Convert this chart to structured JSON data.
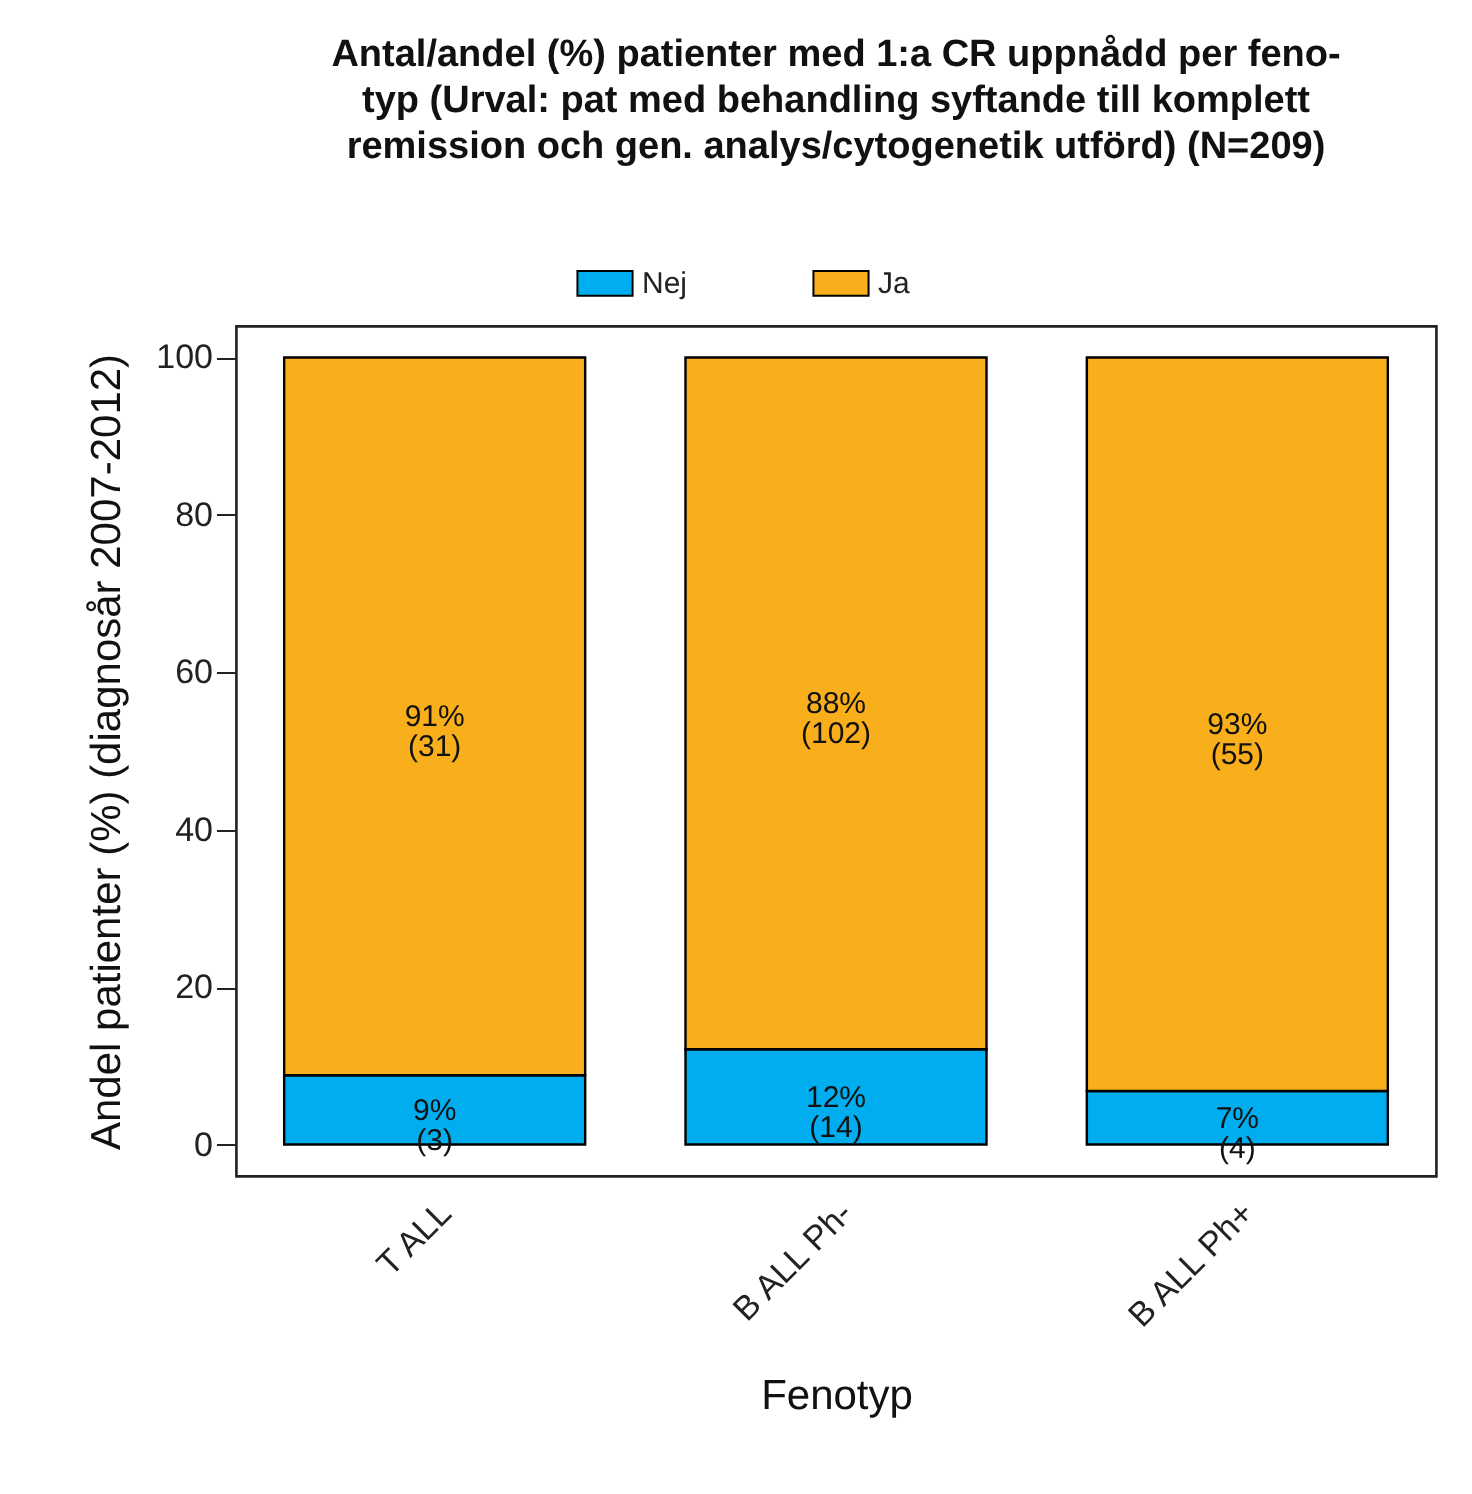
{
  "chart_data": {
    "type": "bar",
    "title": "Antal/andel (%) patienter med 1:a CR uppnådd per feno-\ntyp (Urval: pat med behandling syftande till komplett\nremission och gen. analys/cytogenetik utförd) (N=209)",
    "xlabel": "Fenotyp",
    "ylabel": "Andel patienter (%) (diagnosår 2007-2012)",
    "categories": [
      "T ALL",
      "B ALL Ph-",
      "B ALL Ph+"
    ],
    "stacked": true,
    "legend": "top",
    "ylim": [
      -4,
      104
    ],
    "yticks": [
      0,
      20,
      40,
      60,
      80,
      100
    ],
    "series": [
      {
        "name": "Nej",
        "color": "#00aeef",
        "values": [
          8.8,
          12.1,
          6.8
        ],
        "value_labels": [
          "9%\n(3)",
          "12%\n(14)",
          "7%\n(4)"
        ]
      },
      {
        "name": "Ja",
        "color": "#f9ae1b",
        "values": [
          91.2,
          87.9,
          93.2
        ],
        "value_labels": [
          "91%\n(31)",
          "88%\n(102)",
          "93%\n(55)"
        ]
      }
    ]
  }
}
